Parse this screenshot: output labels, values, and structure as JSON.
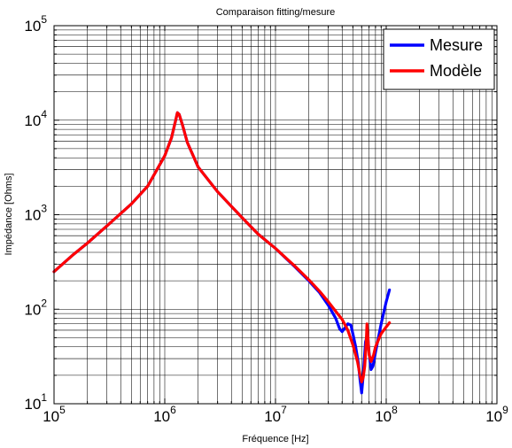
{
  "chart_data": {
    "type": "line",
    "title": "Comparaison fitting/mesure",
    "xlabel": "Fréquence [Hz]",
    "ylabel": "Impédance [Ohms]",
    "x_scale": "log",
    "y_scale": "log",
    "xlim": [
      100000,
      1000000000
    ],
    "ylim": [
      10,
      100000
    ],
    "grid": true,
    "legend_position": "top-right",
    "x_ticks": [
      {
        "value": 100000,
        "base": "10",
        "exp": "5"
      },
      {
        "value": 1000000,
        "base": "10",
        "exp": "6"
      },
      {
        "value": 10000000,
        "base": "10",
        "exp": "7"
      },
      {
        "value": 100000000,
        "base": "10",
        "exp": "8"
      },
      {
        "value": 1000000000,
        "base": "10",
        "exp": "9"
      }
    ],
    "y_ticks": [
      {
        "value": 10,
        "base": "10",
        "exp": "1"
      },
      {
        "value": 100,
        "base": "10",
        "exp": "2"
      },
      {
        "value": 1000,
        "base": "10",
        "exp": "3"
      },
      {
        "value": 10000,
        "base": "10",
        "exp": "4"
      },
      {
        "value": 100000,
        "base": "10",
        "exp": "5"
      }
    ],
    "series": [
      {
        "name": "Mesure",
        "color": "#0000ff",
        "x": [
          100000,
          150000,
          200000,
          300000,
          500000,
          700000,
          1000000,
          1150000,
          1250000,
          1300000,
          1350000,
          1450000,
          1600000,
          2000000,
          3000000,
          5000000,
          7000000,
          10000000,
          15000000,
          20000000,
          25000000,
          30000000,
          35000000,
          38000000,
          40000000,
          43000000,
          45000000,
          48000000,
          50000000,
          53000000,
          56000000,
          58000000,
          60000000,
          62000000,
          65000000,
          68000000,
          70000000,
          73000000,
          76000000,
          80000000,
          90000000,
          100000000,
          107000000
        ],
        "y": [
          250,
          380,
          500,
          760,
          1300,
          2000,
          4200,
          6500,
          9800,
          12000,
          11500,
          8800,
          5800,
          3200,
          1750,
          930,
          620,
          440,
          280,
          200,
          150,
          110,
          80,
          62,
          58,
          65,
          70,
          68,
          55,
          40,
          27,
          18,
          13,
          20,
          45,
          55,
          35,
          23,
          25,
          35,
          70,
          120,
          160
        ]
      },
      {
        "name": "Modèle",
        "color": "#ff0000",
        "x": [
          100000,
          150000,
          200000,
          300000,
          500000,
          700000,
          1000000,
          1150000,
          1250000,
          1300000,
          1350000,
          1450000,
          1600000,
          2000000,
          3000000,
          5000000,
          7000000,
          10000000,
          15000000,
          20000000,
          25000000,
          30000000,
          35000000,
          40000000,
          45000000,
          50000000,
          55000000,
          58000000,
          60000000,
          62000000,
          64000000,
          66000000,
          67000000,
          68000000,
          70000000,
          73000000,
          77000000,
          80000000,
          90000000,
          100000000,
          107000000
        ],
        "y": [
          250,
          380,
          500,
          760,
          1300,
          2000,
          4200,
          6500,
          9800,
          12000,
          11500,
          8800,
          5800,
          3200,
          1750,
          930,
          620,
          440,
          285,
          205,
          155,
          120,
          95,
          78,
          60,
          42,
          28,
          20,
          17,
          19,
          25,
          45,
          70,
          55,
          33,
          28,
          33,
          40,
          55,
          65,
          72
        ]
      }
    ]
  }
}
